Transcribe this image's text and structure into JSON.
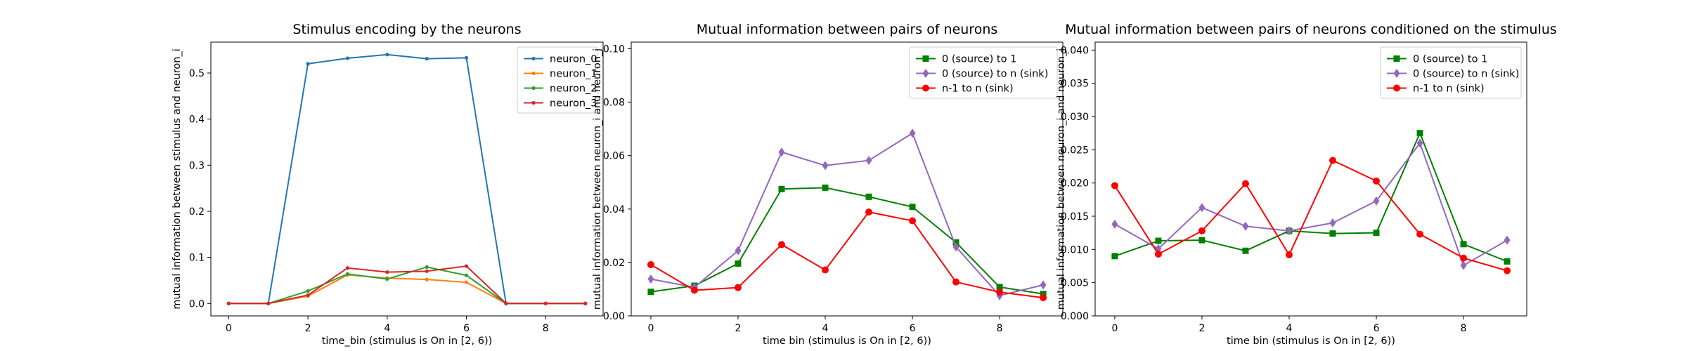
{
  "chart_data": [
    {
      "type": "line",
      "title": "Stimulus encoding by the neurons",
      "xlabel": "time_bin (stimulus is On in [2, 6))",
      "ylabel": "mutual information between stimulus and neuron_i",
      "x": [
        0,
        1,
        2,
        3,
        4,
        5,
        6,
        7,
        8,
        9
      ],
      "xlim": [
        -0.45,
        9.45
      ],
      "ylim": [
        -0.027,
        0.567
      ],
      "xticks": [
        0,
        2,
        4,
        6,
        8
      ],
      "yticks": [
        0.0,
        0.1,
        0.2,
        0.3,
        0.4,
        0.5
      ],
      "tick_decimals": 1,
      "legend_position": "upper right",
      "grid": false,
      "series": [
        {
          "name": "neuron_0",
          "color": "#1f77b4",
          "marker": "point",
          "values": [
            0.0,
            0.0,
            0.52,
            0.532,
            0.54,
            0.531,
            0.533,
            0.0,
            0.0,
            0.0
          ]
        },
        {
          "name": "neuron_1",
          "color": "#ff7f0e",
          "marker": "point",
          "values": [
            0.0,
            0.0,
            0.016,
            0.062,
            0.055,
            0.052,
            0.046,
            0.0,
            0.0,
            0.0
          ]
        },
        {
          "name": "neuron_2",
          "color": "#2ca02c",
          "marker": "point",
          "values": [
            0.0,
            0.0,
            0.027,
            0.064,
            0.053,
            0.079,
            0.061,
            0.0,
            0.0,
            0.0
          ]
        },
        {
          "name": "neuron_3",
          "color": "#d62728",
          "marker": "point",
          "values": [
            0.0,
            0.0,
            0.018,
            0.077,
            0.068,
            0.07,
            0.081,
            0.0,
            0.0,
            0.0
          ]
        }
      ]
    },
    {
      "type": "line",
      "title": "Mutual information between pairs of neurons",
      "xlabel": "time bin (stimulus is On in [2, 6))",
      "ylabel": "mutual information between neuron_i and neuron_j",
      "x": [
        0,
        1,
        2,
        3,
        4,
        5,
        6,
        7,
        8,
        9
      ],
      "xlim": [
        -0.45,
        9.45
      ],
      "ylim": [
        0.0,
        0.1025
      ],
      "xticks": [
        0,
        2,
        4,
        6,
        8
      ],
      "yticks": [
        0.0,
        0.02,
        0.04,
        0.06,
        0.08,
        0.1
      ],
      "tick_decimals": 2,
      "legend_position": "upper right",
      "grid": false,
      "series": [
        {
          "name": "0 (source) to 1",
          "color": "#008000",
          "marker": "square",
          "values": [
            0.009,
            0.0113,
            0.0196,
            0.0475,
            0.048,
            0.0446,
            0.0408,
            0.0275,
            0.0108,
            0.0082
          ]
        },
        {
          "name": "0 (source) to n (sink)",
          "color": "#9467bd",
          "marker": "diamond",
          "values": [
            0.0138,
            0.0107,
            0.0244,
            0.0613,
            0.0563,
            0.0582,
            0.0684,
            0.0258,
            0.0076,
            0.0116
          ]
        },
        {
          "name": "n-1 to n (sink)",
          "color": "#ff0000",
          "marker": "circle",
          "values": [
            0.0192,
            0.0096,
            0.0106,
            0.0267,
            0.0172,
            0.0389,
            0.0356,
            0.0127,
            0.0089,
            0.0068
          ]
        }
      ]
    },
    {
      "type": "line",
      "title": "Mutual information between pairs of neurons conditioned on the stimulus",
      "xlabel": "time bin (stimulus is On in [2, 6))",
      "ylabel": "mutual information between neuron_i and neuron_j",
      "x": [
        0,
        1,
        2,
        3,
        4,
        5,
        6,
        7,
        8,
        9
      ],
      "xlim": [
        -0.45,
        9.45
      ],
      "ylim": [
        0.0,
        0.0412
      ],
      "xticks": [
        0,
        2,
        4,
        6,
        8
      ],
      "yticks": [
        0.0,
        0.005,
        0.01,
        0.015,
        0.02,
        0.025,
        0.03,
        0.035,
        0.04
      ],
      "tick_decimals": 3,
      "legend_position": "upper right",
      "grid": false,
      "series": [
        {
          "name": "0 (source) to 1",
          "color": "#008000",
          "marker": "square",
          "values": [
            0.009,
            0.0113,
            0.0114,
            0.0098,
            0.0128,
            0.0124,
            0.0125,
            0.0275,
            0.0108,
            0.0082
          ]
        },
        {
          "name": "0 (source) to n (sink)",
          "color": "#9467bd",
          "marker": "diamond",
          "values": [
            0.0138,
            0.0101,
            0.0163,
            0.0135,
            0.0128,
            0.014,
            0.0173,
            0.026,
            0.0076,
            0.0114
          ]
        },
        {
          "name": "n-1 to n (sink)",
          "color": "#ff0000",
          "marker": "circle",
          "values": [
            0.0196,
            0.0093,
            0.0128,
            0.0199,
            0.0092,
            0.0234,
            0.0203,
            0.0123,
            0.0087,
            0.0068
          ]
        }
      ]
    }
  ]
}
